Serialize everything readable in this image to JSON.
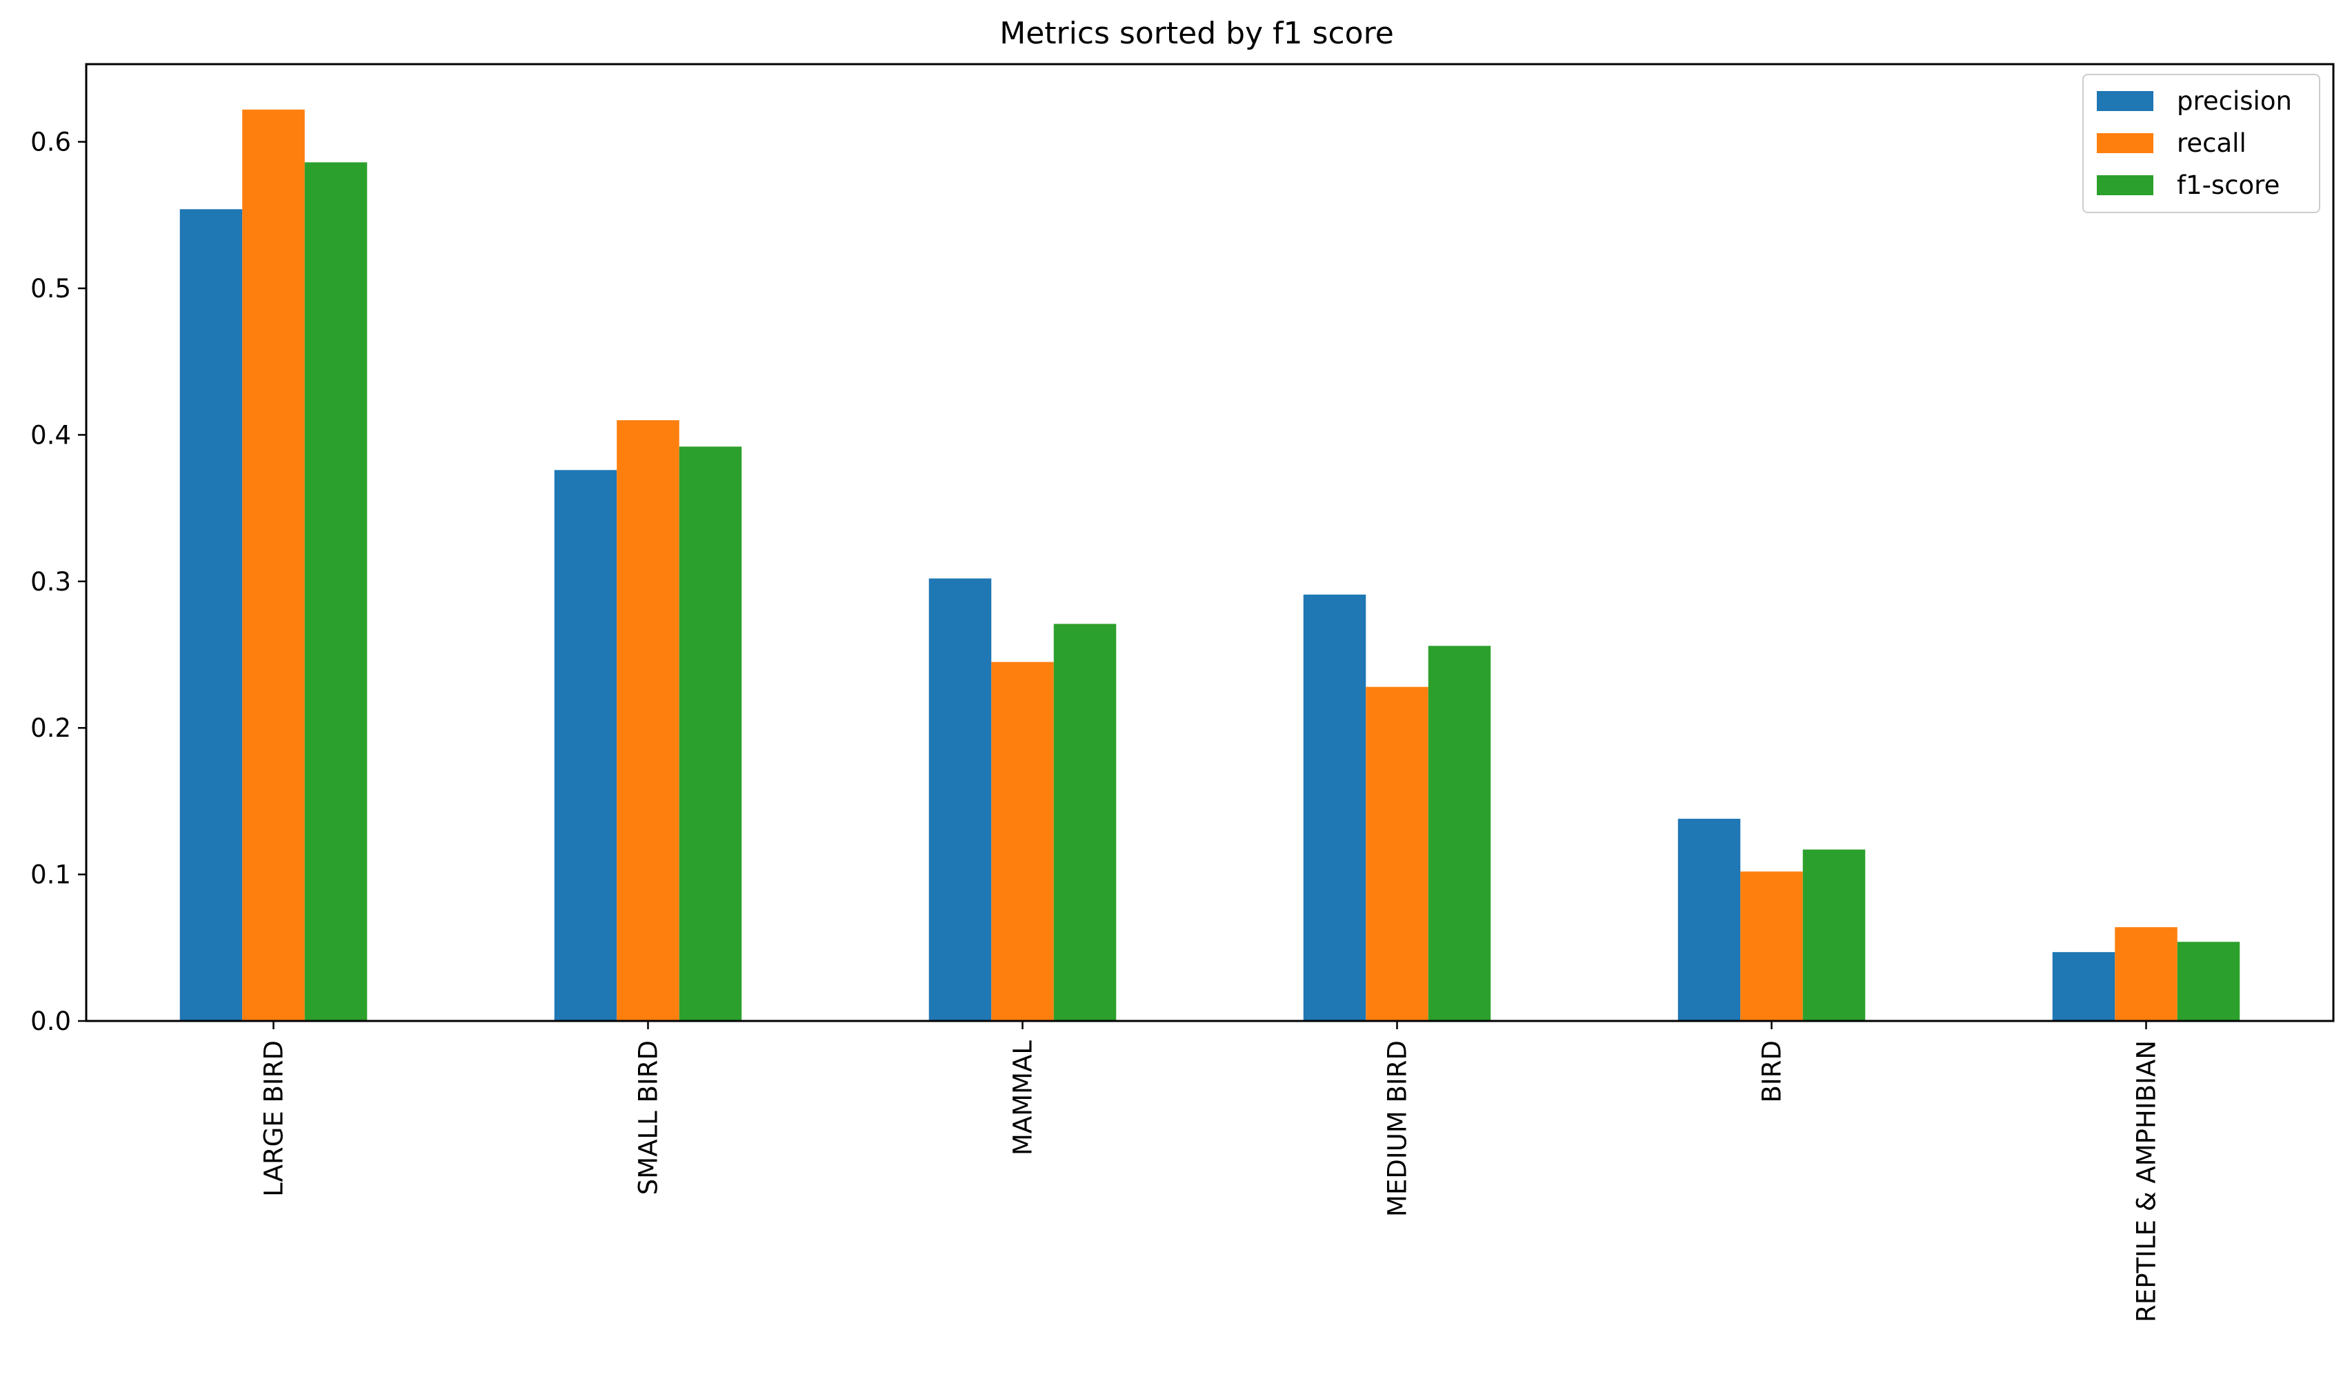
{
  "chart_data": {
    "type": "bar",
    "title": "Metrics sorted by f1 score",
    "xlabel": "",
    "ylabel": "",
    "categories": [
      "LARGE BIRD",
      "SMALL BIRD",
      "MAMMAL",
      "MEDIUM BIRD",
      "BIRD",
      "REPTILE & AMPHIBIAN"
    ],
    "series": [
      {
        "name": "precision",
        "color": "#1f77b4",
        "values": [
          0.554,
          0.376,
          0.302,
          0.291,
          0.138,
          0.047
        ]
      },
      {
        "name": "recall",
        "color": "#ff7f0e",
        "values": [
          0.622,
          0.41,
          0.245,
          0.228,
          0.102,
          0.064
        ]
      },
      {
        "name": "f1-score",
        "color": "#2ca02c",
        "values": [
          0.586,
          0.392,
          0.271,
          0.256,
          0.117,
          0.054
        ]
      }
    ],
    "ylim": [
      0,
      0.653
    ],
    "yticks": [
      0.0,
      0.1,
      0.2,
      0.3,
      0.4,
      0.5,
      0.6
    ],
    "ytick_labels": [
      "0.0",
      "0.1",
      "0.2",
      "0.3",
      "0.4",
      "0.5",
      "0.6"
    ],
    "grid": false,
    "legend_position": "top-right"
  }
}
